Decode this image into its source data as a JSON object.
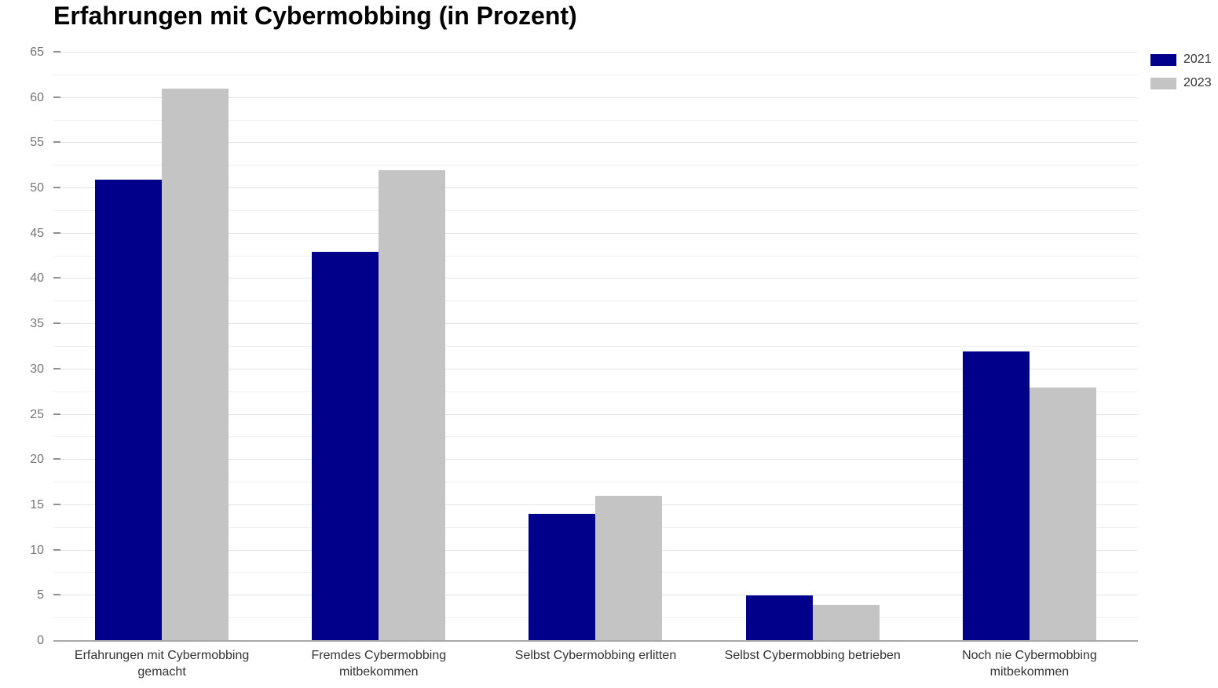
{
  "title": "Erfahrungen mit Cybermobbing (in Prozent)",
  "legend": {
    "items": [
      {
        "label": "2021",
        "color": "#00008B"
      },
      {
        "label": "2023",
        "color": "#C4C4C4"
      }
    ]
  },
  "chart_data": {
    "type": "bar",
    "title": "Erfahrungen mit Cybermobbing (in Prozent)",
    "categories": [
      "Erfahrungen mit Cybermobbing gemacht",
      "Fremdes Cybermobbing mitbekommen",
      "Selbst Cybermobbing erlitten",
      "Selbst Cybermobbing betrieben",
      "Noch nie Cybermobbing mitbekommen"
    ],
    "series": [
      {
        "name": "2021",
        "color": "#00008B",
        "values": [
          51,
          43,
          14,
          5,
          32
        ]
      },
      {
        "name": "2023",
        "color": "#C4C4C4",
        "values": [
          61,
          52,
          16,
          4,
          28
        ]
      }
    ],
    "xlabel": "",
    "ylabel": "",
    "ylim": [
      0,
      65
    ],
    "yticks": [
      0,
      5,
      10,
      15,
      20,
      25,
      30,
      35,
      40,
      45,
      50,
      55,
      60,
      65
    ],
    "minor_gridline_step": 2.5,
    "grid": true,
    "legend_position": "top-right",
    "colors": {
      "grid_major": "#E3E3E3",
      "grid_minor": "#F0F0F0",
      "axis_line": "#A8A8A8",
      "tick": "#909090",
      "ytick_label": "#757575",
      "category_label": "#333333",
      "title": "#000000"
    }
  }
}
